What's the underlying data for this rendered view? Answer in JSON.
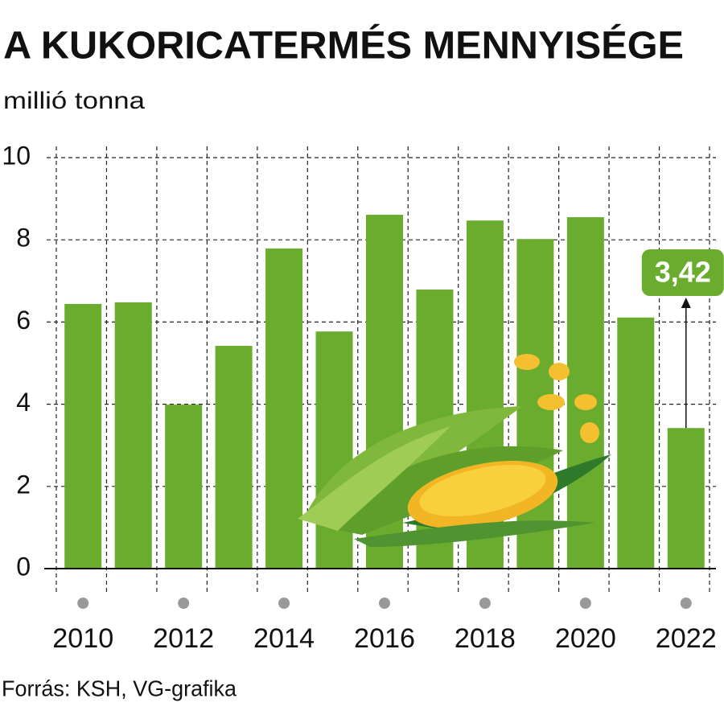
{
  "chart_data": {
    "type": "bar",
    "title": "A KUKORICATERMÉS MENNYISÉGE",
    "subtitle": "millió tonna",
    "source": "Forrás: KSH, VG-grafika",
    "categories": [
      "2010",
      null,
      "2012",
      null,
      "2014",
      null,
      "2016",
      null,
      "2018",
      null,
      "2020",
      null,
      "2022"
    ],
    "values": [
      6.44,
      6.48,
      3.99,
      5.42,
      7.79,
      5.77,
      8.61,
      6.79,
      8.47,
      8.02,
      8.55,
      6.11,
      3.42
    ],
    "value_labels": [
      null,
      null,
      null,
      null,
      null,
      null,
      null,
      null,
      null,
      null,
      null,
      null,
      "3,42"
    ],
    "color": "#6aad2e",
    "ylim": [
      0,
      10
    ],
    "yticks": [
      0,
      2,
      4,
      6,
      8,
      10
    ],
    "grid": true
  }
}
